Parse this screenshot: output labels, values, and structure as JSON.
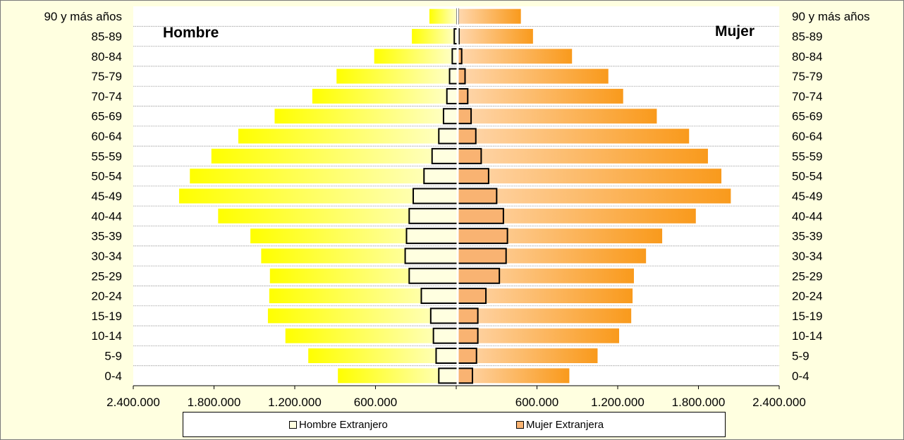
{
  "chart_data": {
    "type": "bar",
    "orientation": "horizontal",
    "subtype": "population-pyramid",
    "categories": [
      "0-4",
      "5-9",
      "10-14",
      "15-19",
      "20-24",
      "25-29",
      "30-34",
      "35-39",
      "40-44",
      "45-49",
      "50-54",
      "55-59",
      "60-64",
      "65-69",
      "70-74",
      "75-79",
      "80-84",
      "85-89",
      "90 y más años"
    ],
    "left_label": "Hombre",
    "right_label": "Mujer",
    "series": [
      {
        "side": "left",
        "kind": "total",
        "values": [
          890000,
          1110000,
          1280000,
          1410000,
          1400000,
          1395000,
          1460000,
          1540000,
          1780000,
          2070000,
          1990000,
          1830000,
          1630000,
          1360000,
          1080000,
          900000,
          620000,
          340000,
          210000
        ],
        "color_from": "#ffff00",
        "color_to": "#ffffd0"
      },
      {
        "side": "right",
        "kind": "total",
        "values": [
          830000,
          1040000,
          1200000,
          1290000,
          1300000,
          1310000,
          1400000,
          1520000,
          1770000,
          2030000,
          1960000,
          1860000,
          1720000,
          1480000,
          1230000,
          1120000,
          850000,
          560000,
          470000
        ],
        "color_from": "#ffd8b0",
        "color_to": "#f99a1c"
      },
      {
        "name": "Hombre Extranjero",
        "side": "left",
        "kind": "overlay",
        "values": [
          140000,
          160000,
          180000,
          200000,
          270000,
          360000,
          390000,
          380000,
          360000,
          330000,
          250000,
          190000,
          140000,
          105000,
          80000,
          60000,
          40000,
          25000,
          5000
        ],
        "color": "#ffffe0"
      },
      {
        "name": "Mujer Extranjera",
        "side": "right",
        "kind": "overlay",
        "values": [
          110000,
          140000,
          150000,
          150000,
          210000,
          310000,
          360000,
          370000,
          340000,
          290000,
          230000,
          175000,
          135000,
          100000,
          75000,
          55000,
          30000,
          10000,
          5000
        ],
        "color": "#f9b372"
      }
    ],
    "x_ticks": [
      "2.400.000",
      "1.800.000",
      "1.200.000",
      "600.000",
      "",
      "600.000",
      "1.200.000",
      "1.800.000",
      "2.400.000"
    ],
    "xlim": [
      -2400000,
      2400000
    ],
    "grid": {
      "horizontal": true,
      "vertical": false
    },
    "legend": {
      "position": "bottom",
      "entries": [
        "Hombre Extranjero",
        "Mujer Extranjera"
      ]
    }
  }
}
